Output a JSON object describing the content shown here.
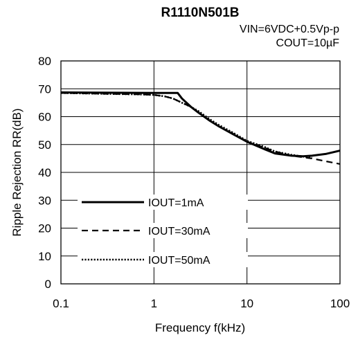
{
  "chart_data": {
    "type": "line",
    "title": "R1110N501B",
    "conditions": [
      "VIN=6VDC+0.5Vp-p",
      "COUT=10µF"
    ],
    "xlabel": "Frequency f(kHz)",
    "ylabel": "Ripple Rejection RR(dB)",
    "x_scale": "log",
    "xlim": [
      0.1,
      100
    ],
    "ylim": [
      0,
      80
    ],
    "x_ticks": [
      0.1,
      1,
      10,
      100
    ],
    "x_tick_labels": [
      "0.1",
      "1",
      "10",
      "100"
    ],
    "y_ticks": [
      0,
      10,
      20,
      30,
      40,
      50,
      60,
      70,
      80
    ],
    "y_tick_labels": [
      "0",
      "10",
      "20",
      "30",
      "40",
      "50",
      "60",
      "70",
      "80"
    ],
    "grid": true,
    "legend_position": "bottom-left",
    "series": [
      {
        "name": "IOUT=1mA",
        "style": "solid",
        "points": [
          [
            0.1,
            68.7
          ],
          [
            0.3,
            68.6
          ],
          [
            1,
            68.5
          ],
          [
            1.5,
            68.5
          ],
          [
            1.8,
            68.5
          ],
          [
            2,
            66.5
          ],
          [
            2.5,
            63.5
          ],
          [
            3,
            61.5
          ],
          [
            4,
            58.5
          ],
          [
            5,
            56.5
          ],
          [
            7,
            53.8
          ],
          [
            10,
            51
          ],
          [
            15,
            48.5
          ],
          [
            20,
            46.8
          ],
          [
            30,
            46
          ],
          [
            40,
            45.8
          ],
          [
            50,
            46
          ],
          [
            70,
            46.6
          ],
          [
            100,
            47.8
          ]
        ]
      },
      {
        "name": "IOUT=30mA",
        "style": "dashed",
        "points": [
          [
            0.1,
            68.5
          ],
          [
            0.3,
            68.2
          ],
          [
            0.7,
            68
          ],
          [
            1,
            67.8
          ],
          [
            1.3,
            67.3
          ],
          [
            1.6,
            66.5
          ],
          [
            2,
            65
          ],
          [
            2.5,
            63.5
          ],
          [
            3,
            61.5
          ],
          [
            4,
            58.5
          ],
          [
            5,
            56.5
          ],
          [
            7,
            54
          ],
          [
            10,
            51
          ],
          [
            15,
            49
          ],
          [
            20,
            47.5
          ],
          [
            30,
            46
          ],
          [
            50,
            45
          ],
          [
            70,
            44
          ],
          [
            100,
            43
          ]
        ]
      },
      {
        "name": "IOUT=50mA",
        "style": "dotted",
        "points": [
          [
            0.1,
            68.5
          ],
          [
            0.3,
            68.2
          ],
          [
            0.7,
            68
          ],
          [
            1,
            67.8
          ],
          [
            1.3,
            67.3
          ],
          [
            1.6,
            66.5
          ],
          [
            2,
            65
          ],
          [
            2.5,
            63.5
          ],
          [
            3,
            62
          ],
          [
            4,
            59
          ],
          [
            5,
            57
          ],
          [
            7,
            54.3
          ],
          [
            10,
            51.3
          ],
          [
            15,
            49.3
          ],
          [
            20,
            47.5
          ],
          [
            30,
            46.3
          ],
          [
            50,
            45.2
          ]
        ]
      }
    ]
  }
}
